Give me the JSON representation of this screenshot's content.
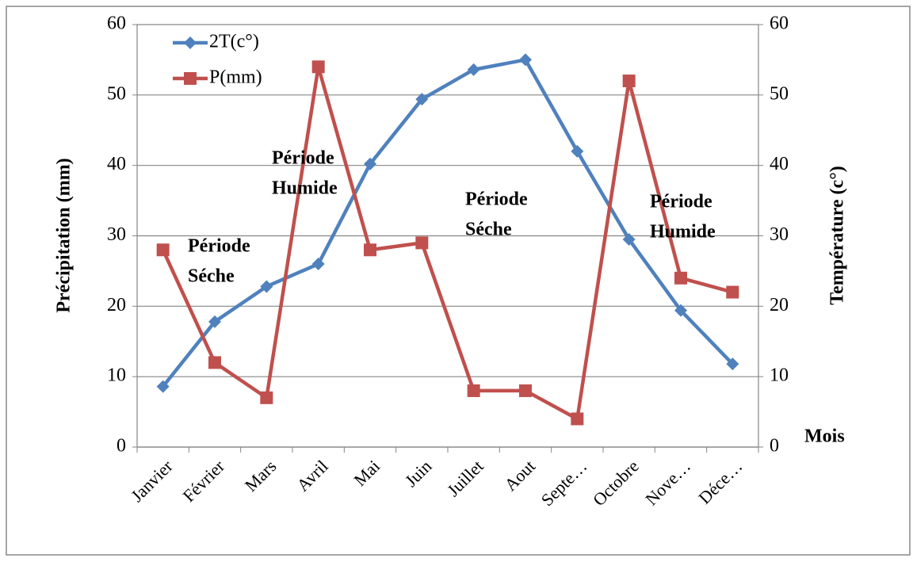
{
  "chart_data": {
    "type": "line",
    "categories": [
      "Janvier",
      "Février",
      "Mars",
      "Avril",
      "Mai",
      "Juin",
      "Juillet",
      "Aout",
      "Septe…",
      "Octobre",
      "Nove…",
      "Déce…"
    ],
    "series": [
      {
        "name": "2T(c°)",
        "color": "#4f81bd",
        "marker": "diamond",
        "axis": "y2",
        "values": [
          8.6,
          17.8,
          22.8,
          26,
          40.2,
          49.4,
          53.6,
          55,
          42,
          29.5,
          19.4,
          11.8
        ]
      },
      {
        "name": "P(mm)",
        "color": "#c0504d",
        "marker": "square",
        "values": [
          28,
          12,
          7,
          54,
          28,
          29,
          8,
          8,
          4,
          52,
          24,
          22
        ]
      }
    ],
    "ylabel": "Précipitation (mm)",
    "y2label": "Température (c°)",
    "xlabel": "Mois",
    "ylim": [
      0,
      60
    ],
    "yticks": [
      0,
      10,
      20,
      30,
      40,
      50,
      60
    ],
    "y2lim": [
      0,
      60
    ],
    "y2ticks": [
      0,
      10,
      20,
      30,
      40,
      50,
      60
    ],
    "grid": true,
    "legend": "top-left",
    "annotations": [
      {
        "lines": [
          "Période",
          "Séche"
        ]
      },
      {
        "lines": [
          "Période",
          "Humide"
        ]
      },
      {
        "lines": [
          "Période",
          "Séche"
        ]
      },
      {
        "lines": [
          "Période",
          "Humide"
        ]
      }
    ]
  }
}
